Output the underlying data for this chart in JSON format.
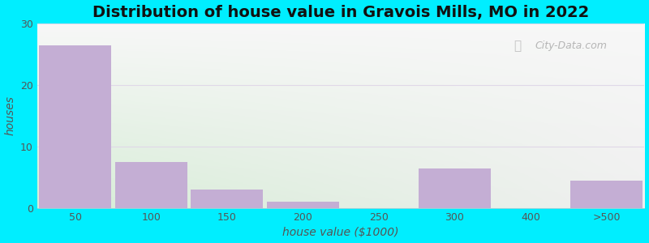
{
  "title": "Distribution of house value in Gravois Mills, MO in 2022",
  "xlabel": "house value ($1000)",
  "ylabel": "houses",
  "categories": [
    "50",
    "100",
    "150",
    "200",
    "250",
    "300",
    "400",
    ">500"
  ],
  "values": [
    26.5,
    7.5,
    3.0,
    1.0,
    0,
    6.5,
    0,
    4.5
  ],
  "bar_color": "#c4aed4",
  "bar_edge_color": "#b09ac0",
  "ylim": [
    0,
    30
  ],
  "yticks": [
    0,
    10,
    20,
    30
  ],
  "bg_outer": "#00eeff",
  "bg_top_left": "#eaf5ea",
  "bg_top_right": "#f0f8f0",
  "bg_bottom_left": "#d8eedd",
  "bg_bottom_right": "#f5f5f5",
  "title_fontsize": 14,
  "axis_label_fontsize": 10,
  "tick_fontsize": 9,
  "watermark": "City-Data.com",
  "grid_color": "#e0d8e8",
  "grid_linewidth": 0.8
}
